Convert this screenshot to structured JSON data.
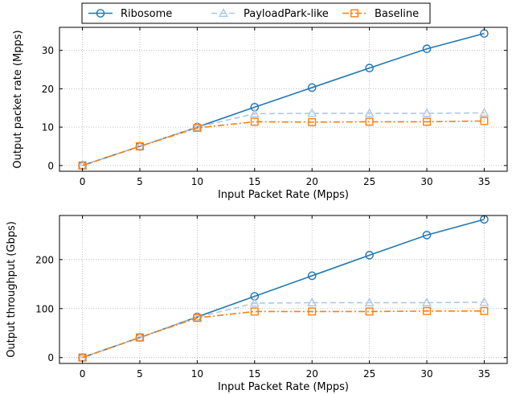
{
  "legend": {
    "entries": [
      {
        "name": "Ribosome",
        "color": "#1f77b4",
        "marker": "circle",
        "dash": "solid"
      },
      {
        "name": "PayloadPark-like",
        "color": "#aec7e8",
        "marker": "triangle",
        "dash": "dashed"
      },
      {
        "name": "Baseline",
        "color": "#ff7f0e",
        "marker": "square",
        "dash": "dashdot"
      }
    ],
    "placement": "top-center"
  },
  "chart_data": [
    {
      "type": "line",
      "xlabel": "Input Packet Rate (Mpps)",
      "ylabel": "Output packet rate (Mpps)",
      "x": [
        0,
        5,
        10,
        15,
        20,
        25,
        30,
        35
      ],
      "xlim": [
        -2,
        37
      ],
      "ylim": [
        -1.5,
        36
      ],
      "xticks": [
        0,
        5,
        10,
        15,
        20,
        25,
        30,
        35
      ],
      "yticks": [
        0,
        10,
        20,
        30
      ],
      "grid": true,
      "series": [
        {
          "name": "Ribosome",
          "values": [
            0,
            5,
            10,
            15.2,
            20.3,
            25.4,
            30.4,
            34.4
          ]
        },
        {
          "name": "PayloadPark-like",
          "values": [
            0,
            5,
            10,
            13.5,
            13.6,
            13.6,
            13.6,
            13.7
          ]
        },
        {
          "name": "Baseline",
          "values": [
            0,
            5,
            9.8,
            11.4,
            11.3,
            11.4,
            11.4,
            11.6
          ]
        }
      ]
    },
    {
      "type": "line",
      "xlabel": "Input Packet Rate (Mpps)",
      "ylabel": "Output throughput (Gbps)",
      "x": [
        0,
        5,
        10,
        15,
        20,
        25,
        30,
        35
      ],
      "xlim": [
        -2,
        37
      ],
      "ylim": [
        -12,
        290
      ],
      "xticks": [
        0,
        5,
        10,
        15,
        20,
        25,
        30,
        35
      ],
      "yticks": [
        0,
        100,
        200
      ],
      "grid": true,
      "series": [
        {
          "name": "Ribosome",
          "values": [
            0,
            41,
            83,
            125,
            167,
            209,
            250,
            282
          ]
        },
        {
          "name": "PayloadPark-like",
          "values": [
            0,
            41,
            82,
            111,
            112,
            112,
            112,
            113
          ]
        },
        {
          "name": "Baseline",
          "values": [
            0,
            41,
            81,
            94,
            94,
            94,
            95,
            95
          ]
        }
      ]
    }
  ]
}
